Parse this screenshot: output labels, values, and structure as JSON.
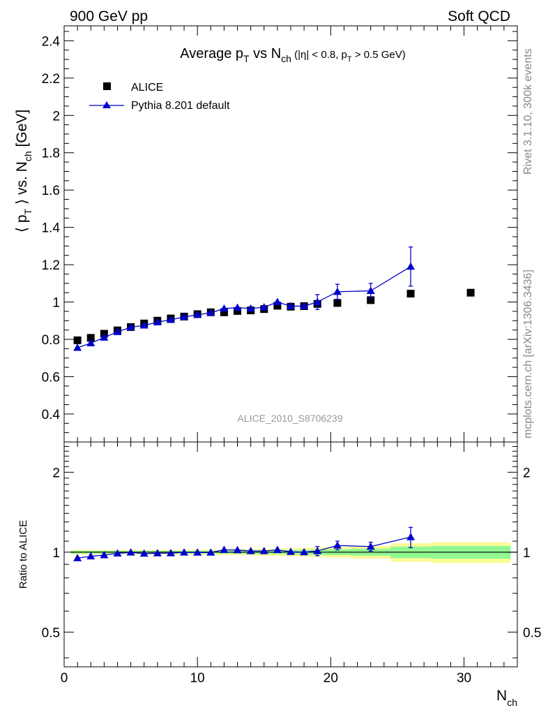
{
  "header": {
    "left": "900 GeV pp",
    "right": "Soft QCD"
  },
  "side": {
    "rivet": "Rivet 3.1.10,  300k events",
    "mcplots": "mcplots.cern.ch [arXiv:1306.3436]"
  },
  "colors": {
    "alice": "#000000",
    "pythia": "#0000cc",
    "band_inner": "#90f890",
    "band_outer": "#fbfb98"
  },
  "chart_data": [
    {
      "type": "scatter",
      "title_parts": {
        "a": "Average p",
        "a_sub": "T",
        "b": " vs N",
        "b_sub": "ch",
        "c": " (|η| < 0.8, p",
        "c_sub": "T",
        "d": " > 0.5 GeV)"
      },
      "ylabel_parts": {
        "a": "⟨ p",
        "a_sub": "T",
        "b": " ⟩ vs. N",
        "b_sub": "ch",
        "c": " [GeV]"
      },
      "watermark": "ALICE_2010_S8706239",
      "xlim": [
        0,
        34
      ],
      "ylim": [
        0.25,
        2.48
      ],
      "yticks": [
        0.4,
        0.6,
        0.8,
        1,
        1.2,
        1.4,
        1.6,
        1.8,
        2,
        2.2,
        2.4
      ],
      "ytick_labels": [
        "0.4",
        "0.6",
        "0.8",
        "1",
        "1.2",
        "1.4",
        "1.6",
        "1.8",
        "2",
        "2.2",
        "2.4"
      ],
      "legend_position": "top-left",
      "series": [
        {
          "name": "ALICE",
          "marker": "square",
          "x": [
            1,
            2,
            3,
            4,
            5,
            6,
            7,
            8,
            9,
            10,
            11,
            12,
            13,
            14,
            15,
            16,
            17,
            18,
            19,
            20.5,
            23,
            26,
            30.5
          ],
          "y": [
            0.795,
            0.808,
            0.83,
            0.848,
            0.866,
            0.885,
            0.9,
            0.912,
            0.922,
            0.935,
            0.945,
            0.945,
            0.952,
            0.955,
            0.962,
            0.98,
            0.975,
            0.978,
            0.99,
            0.995,
            1.01,
            1.045,
            1.05
          ]
        },
        {
          "name": "Pythia 8.201 default",
          "marker": "triangle",
          "x": [
            1,
            2,
            3,
            4,
            5,
            6,
            7,
            8,
            9,
            10,
            11,
            12,
            13,
            14,
            15,
            16,
            17,
            18,
            19,
            20.5,
            23,
            26
          ],
          "y": [
            0.755,
            0.78,
            0.81,
            0.84,
            0.865,
            0.875,
            0.892,
            0.905,
            0.92,
            0.932,
            0.942,
            0.965,
            0.97,
            0.965,
            0.972,
            1.0,
            0.978,
            0.978,
            1.0,
            1.055,
            1.06,
            1.19
          ],
          "yerr": [
            0,
            0,
            0,
            0,
            0,
            0,
            0,
            0,
            0,
            0,
            0,
            0,
            0,
            0,
            0,
            0,
            0,
            0,
            0.04,
            0.04,
            0.04,
            0.105
          ]
        }
      ]
    },
    {
      "type": "scatter",
      "ylabel": "Ratio to ALICE",
      "xlabel_parts": {
        "a": "N",
        "a_sub": "ch"
      },
      "xlim": [
        0,
        34
      ],
      "xticks": [
        0,
        10,
        20,
        30
      ],
      "xtick_labels": [
        "0",
        "10",
        "20",
        "30"
      ],
      "ylim": [
        0.37,
        2.6
      ],
      "log_scale_y": true,
      "yticks": [
        0.5,
        1,
        2
      ],
      "ytick_labels": [
        "0.5",
        "1",
        "2"
      ],
      "reference_line": 1,
      "uncertainty_band": {
        "x_low": [
          0.5,
          1.5,
          2.5,
          3.5,
          4.5,
          5.5,
          6.5,
          7.5,
          8.5,
          9.5,
          10.5,
          11.5,
          12.5,
          13.5,
          14.5,
          15.5,
          16.5,
          17.5,
          18.5,
          19.5,
          21.5,
          24.5,
          27.5
        ],
        "x_high": [
          1.5,
          2.5,
          3.5,
          4.5,
          5.5,
          6.5,
          7.5,
          8.5,
          9.5,
          10.5,
          11.5,
          12.5,
          13.5,
          14.5,
          15.5,
          16.5,
          17.5,
          18.5,
          19.5,
          21.5,
          24.5,
          27.5,
          33.5
        ],
        "stat": [
          0.012,
          0.012,
          0.012,
          0.012,
          0.012,
          0.012,
          0.012,
          0.012,
          0.012,
          0.012,
          0.012,
          0.013,
          0.014,
          0.015,
          0.016,
          0.017,
          0.018,
          0.02,
          0.022,
          0.025,
          0.03,
          0.05,
          0.055
        ],
        "total": [
          0.02,
          0.02,
          0.02,
          0.02,
          0.02,
          0.02,
          0.02,
          0.02,
          0.02,
          0.021,
          0.022,
          0.024,
          0.026,
          0.028,
          0.03,
          0.032,
          0.034,
          0.037,
          0.04,
          0.045,
          0.055,
          0.08,
          0.09
        ]
      },
      "series": [
        {
          "name": "Pythia 8.201 default",
          "x": [
            1,
            2,
            3,
            4,
            5,
            6,
            7,
            8,
            9,
            10,
            11,
            12,
            13,
            14,
            15,
            16,
            17,
            18,
            19,
            20.5,
            23,
            26
          ],
          "y": [
            0.95,
            0.965,
            0.975,
            0.99,
            0.998,
            0.988,
            0.991,
            0.992,
            0.998,
            0.997,
            0.997,
            1.021,
            1.019,
            1.01,
            1.01,
            1.02,
            1.003,
            1.0,
            1.01,
            1.06,
            1.05,
            1.14
          ],
          "yerr": [
            0,
            0,
            0,
            0,
            0,
            0,
            0,
            0,
            0,
            0,
            0,
            0,
            0,
            0,
            0,
            0,
            0,
            0,
            0.04,
            0.04,
            0.04,
            0.1
          ]
        }
      ]
    }
  ]
}
